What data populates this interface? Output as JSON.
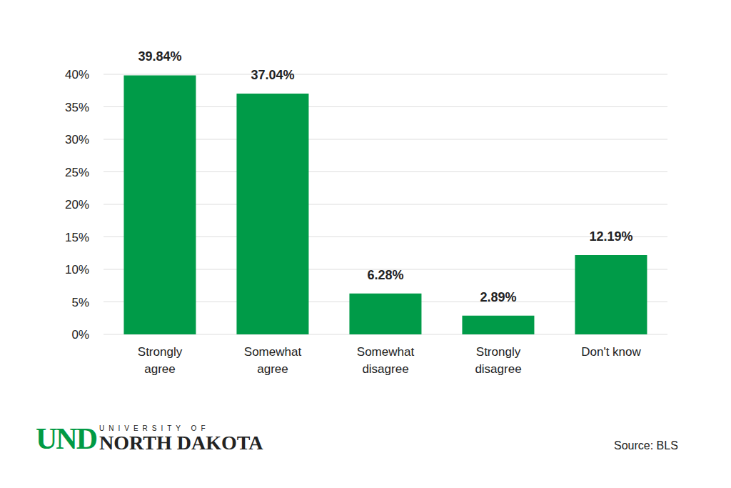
{
  "chart_data": {
    "type": "bar",
    "categories": [
      "Strongly agree",
      "Somewhat agree",
      "Somewhat disagree",
      "Strongly disagree",
      "Don't know"
    ],
    "values": [
      39.84,
      37.04,
      6.28,
      2.89,
      12.19
    ],
    "value_labels": [
      "39.84%",
      "37.04%",
      "6.28%",
      "2.89%",
      "12.19%"
    ],
    "color": "#009b48",
    "ylim": [
      0,
      40
    ],
    "yticks": [
      {
        "value": 0,
        "label": "0%"
      },
      {
        "value": 5,
        "label": "5%"
      },
      {
        "value": 10,
        "label": "10%"
      },
      {
        "value": 15,
        "label": "15%"
      },
      {
        "value": 20,
        "label": "20%"
      },
      {
        "value": 25,
        "label": "25%"
      },
      {
        "value": 30,
        "label": "30%"
      },
      {
        "value": 35,
        "label": "35%"
      },
      {
        "value": 40,
        "label": "40%"
      }
    ],
    "grid": true,
    "data_labels": true,
    "source": "Source: BLS",
    "logo": [
      "UND",
      "UNIVERSITY OF",
      "NORTH DAKOTA"
    ]
  }
}
